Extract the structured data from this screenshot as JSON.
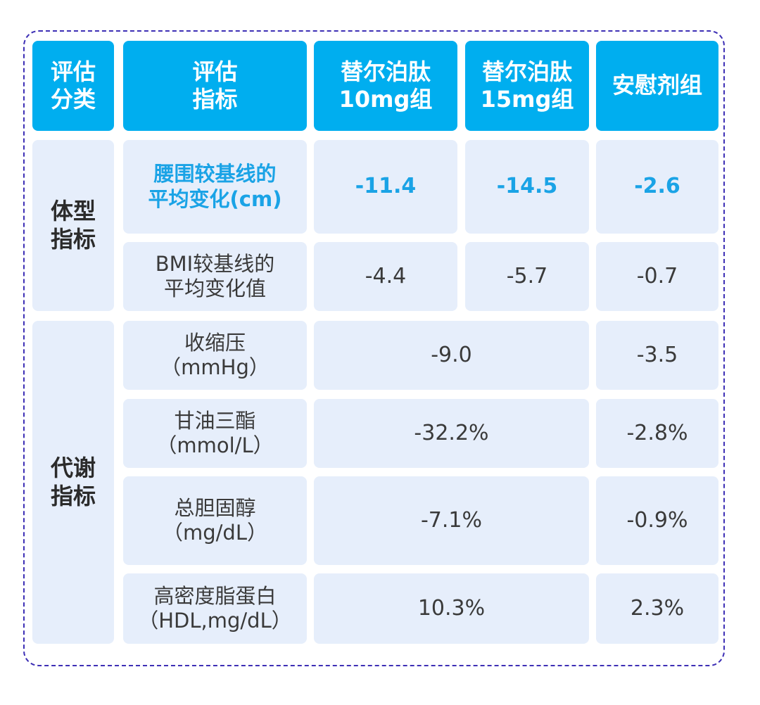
{
  "header": {
    "category": "评估\n分类",
    "indicator": "评估\n指标",
    "group_10mg": "替尔泊肽\n10mg组",
    "group_15mg": "替尔泊肽\n15mg组",
    "placebo": "安慰剂组"
  },
  "sections": [
    {
      "category": "体型\n指标",
      "rows": [
        {
          "label": "腰围较基线的\n平均变化(cm)",
          "v10": "-11.4",
          "v15": "-14.5",
          "placebo": "-2.6",
          "highlight": true
        },
        {
          "label": "BMI较基线的\n平均变化值",
          "v10": "-4.4",
          "v15": "-5.7",
          "placebo": "-0.7"
        }
      ]
    },
    {
      "category": "代谢\n指标",
      "rows": [
        {
          "label": "收缩压\n（mmHg）",
          "combined": "-9.0",
          "placebo": "-3.5"
        },
        {
          "label": "甘油三酯\n（mmol/L）",
          "combined": "-32.2%",
          "placebo": "-2.8%"
        },
        {
          "label": "总胆固醇\n（mg/dL）",
          "combined": "-7.1%",
          "placebo": "-0.9%"
        },
        {
          "label": "高密度脂蛋白\n（HDL,mg/dL）",
          "combined": "10.3%",
          "placebo": "2.3%"
        }
      ]
    }
  ],
  "colors": {
    "header_bg": "#00aeef",
    "cell_bg": "#e6eefb",
    "highlight_text": "#1aa3e6",
    "frame_border": "#3d2fb5"
  }
}
